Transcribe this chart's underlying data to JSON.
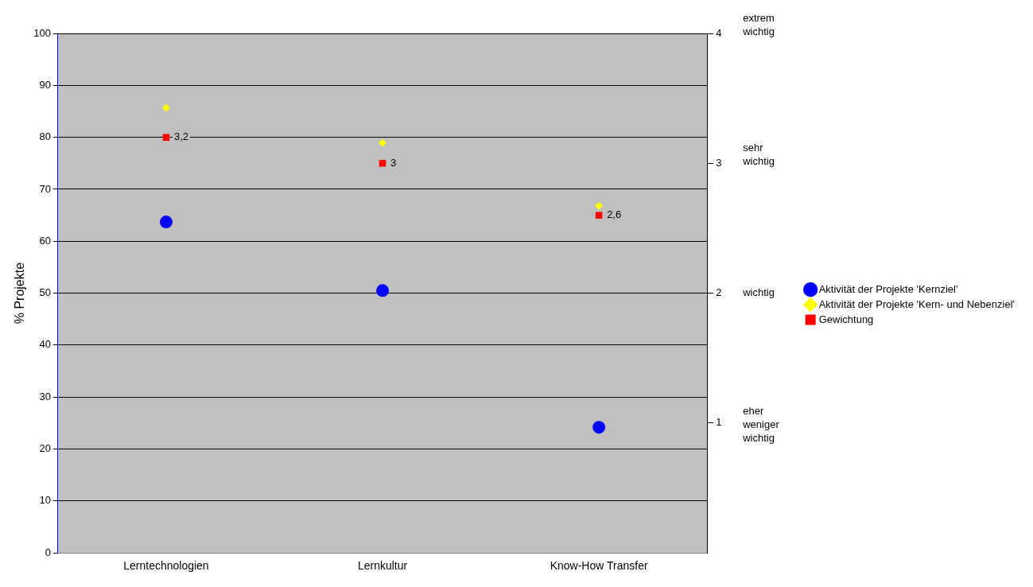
{
  "chart_data": {
    "type": "scatter",
    "categories": [
      "Lerntechnologien",
      "Lernkultur",
      "Know-How Transfer"
    ],
    "ylabel": "% Projekte",
    "ylim": [
      0,
      100
    ],
    "yticks": [
      0,
      10,
      20,
      30,
      40,
      50,
      60,
      70,
      80,
      90,
      100
    ],
    "y2lim": [
      0,
      4
    ],
    "y2ticks": [
      1,
      2,
      3,
      4
    ],
    "annotations": [
      "extrem wichtig",
      "sehr wichtig",
      "wichtig",
      "eher weniger wichtig"
    ],
    "grid": "y",
    "legend": "right",
    "series": [
      {
        "name": "Aktivität der Projekte 'Kernziel'",
        "color": "#0000ff",
        "marker": "circle",
        "values": [
          63.7,
          50.5,
          24.2
        ]
      },
      {
        "name": "Aktivität der Projekte 'Kern- und Nebenziel'",
        "color": "#ffff00",
        "marker": "diamond",
        "values": [
          85.7,
          78.9,
          66.8
        ]
      },
      {
        "name": "Gewichtung",
        "color": "#ff0000",
        "marker": "square",
        "axis": "y2",
        "values": [
          3.2,
          3,
          2.6
        ],
        "value_labels": [
          "3,2",
          "3",
          "2,6"
        ]
      }
    ]
  }
}
